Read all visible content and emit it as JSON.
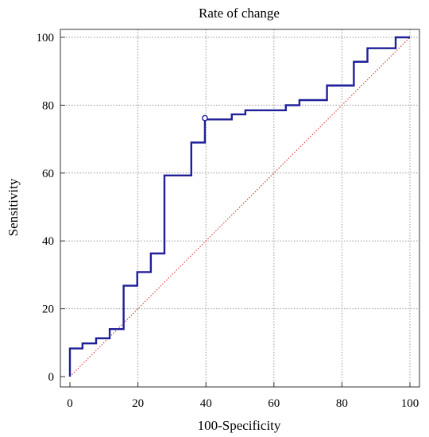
{
  "chart_data": {
    "type": "line",
    "title": "Rate of change",
    "xlabel": "100-Specificity",
    "ylabel": "Sensitivity",
    "xlim": [
      0,
      100
    ],
    "ylim": [
      0,
      100
    ],
    "xticks": [
      "0",
      "20",
      "40",
      "60",
      "80",
      "100"
    ],
    "yticks": [
      "0",
      "20",
      "40",
      "60",
      "80",
      "100"
    ],
    "grid": true,
    "series": [
      {
        "kind": "step",
        "color": "#1f1f9a",
        "points": [
          [
            0,
            0
          ],
          [
            0,
            8.3
          ],
          [
            3.7,
            8.3
          ],
          [
            3.7,
            9.8
          ],
          [
            7.7,
            9.8
          ],
          [
            7.7,
            11.3
          ],
          [
            11.7,
            11.3
          ],
          [
            11.7,
            14.0
          ],
          [
            15.8,
            14.0
          ],
          [
            15.8,
            26.8
          ],
          [
            19.8,
            26.8
          ],
          [
            19.8,
            30.8
          ],
          [
            23.8,
            30.8
          ],
          [
            23.8,
            36.3
          ],
          [
            27.8,
            36.3
          ],
          [
            27.8,
            59.3
          ],
          [
            35.7,
            59.3
          ],
          [
            35.7,
            69.0
          ],
          [
            39.7,
            69.0
          ],
          [
            39.7,
            75.8
          ],
          [
            47.6,
            75.8
          ],
          [
            47.6,
            77.3
          ],
          [
            51.6,
            77.3
          ],
          [
            51.6,
            78.5
          ],
          [
            63.5,
            78.5
          ],
          [
            63.5,
            80.0
          ],
          [
            67.5,
            80.0
          ],
          [
            67.5,
            81.5
          ],
          [
            75.6,
            81.5
          ],
          [
            75.6,
            85.8
          ],
          [
            83.5,
            85.8
          ],
          [
            83.5,
            92.8
          ],
          [
            87.5,
            92.8
          ],
          [
            87.5,
            96.8
          ],
          [
            95.8,
            96.8
          ],
          [
            95.8,
            100
          ],
          [
            100,
            100
          ]
        ]
      },
      {
        "kind": "reference",
        "color": "#e0201f",
        "points": [
          [
            0,
            0
          ],
          [
            100,
            100
          ]
        ]
      }
    ],
    "marker": {
      "x": 39.7,
      "y": 76.2
    }
  }
}
